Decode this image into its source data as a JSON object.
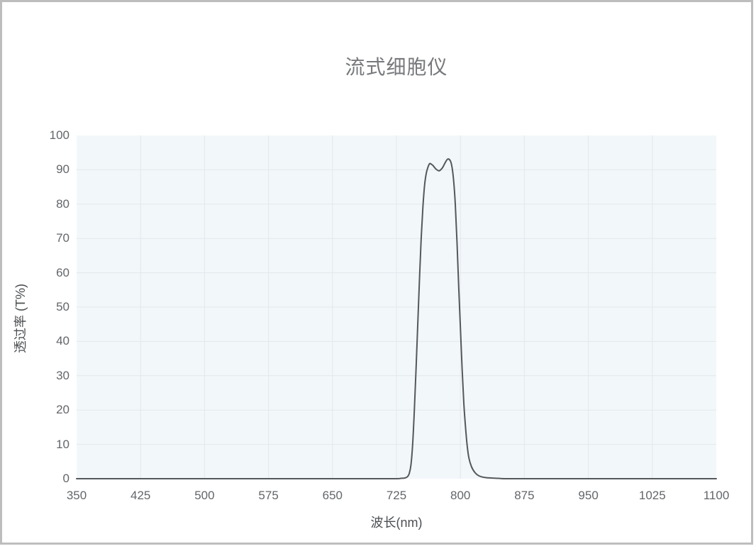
{
  "page": {
    "background_color": "#ffffff",
    "card_border_color": "#bdbdbd"
  },
  "chart_data": {
    "type": "line",
    "title": "流式细胞仪",
    "xlabel": "波长(nm)",
    "ylabel": "透过率 (T%)",
    "xlim": [
      350,
      1100
    ],
    "ylim": [
      0,
      100
    ],
    "x_ticks": [
      350,
      425,
      500,
      575,
      650,
      725,
      800,
      875,
      950,
      1025,
      1100
    ],
    "y_ticks": [
      0,
      10,
      20,
      30,
      40,
      50,
      60,
      70,
      80,
      90,
      100
    ],
    "grid": true,
    "legend": "none",
    "plot_background_color": "#f2f7fa",
    "gridline_color": "#e3e8ec",
    "line_color": "#55585b",
    "series": [
      {
        "name": "透过率",
        "points": [
          [
            350,
            0
          ],
          [
            500,
            0
          ],
          [
            650,
            0
          ],
          [
            720,
            0
          ],
          [
            730,
            0.1
          ],
          [
            735,
            0.2
          ],
          [
            738,
            0.6
          ],
          [
            740,
            1.5
          ],
          [
            742,
            4
          ],
          [
            744,
            10
          ],
          [
            746,
            20
          ],
          [
            748,
            32
          ],
          [
            750,
            45
          ],
          [
            752,
            58
          ],
          [
            754,
            70
          ],
          [
            756,
            79
          ],
          [
            758,
            85.5
          ],
          [
            760,
            89
          ],
          [
            762,
            90.8
          ],
          [
            764,
            91.8
          ],
          [
            766,
            91.6
          ],
          [
            768,
            91.2
          ],
          [
            771,
            90.3
          ],
          [
            775,
            89.7
          ],
          [
            779,
            90.6
          ],
          [
            782,
            92
          ],
          [
            785,
            93.1
          ],
          [
            788,
            92.7
          ],
          [
            790,
            91
          ],
          [
            792,
            87
          ],
          [
            794,
            80
          ],
          [
            796,
            69
          ],
          [
            798,
            56
          ],
          [
            800,
            44
          ],
          [
            802,
            32
          ],
          [
            804,
            22
          ],
          [
            806,
            15
          ],
          [
            808,
            9.5
          ],
          [
            810,
            6
          ],
          [
            813,
            3.5
          ],
          [
            817,
            1.8
          ],
          [
            822,
            0.8
          ],
          [
            830,
            0.3
          ],
          [
            845,
            0.1
          ],
          [
            860,
            0
          ],
          [
            950,
            0
          ],
          [
            1100,
            0
          ]
        ]
      }
    ]
  }
}
